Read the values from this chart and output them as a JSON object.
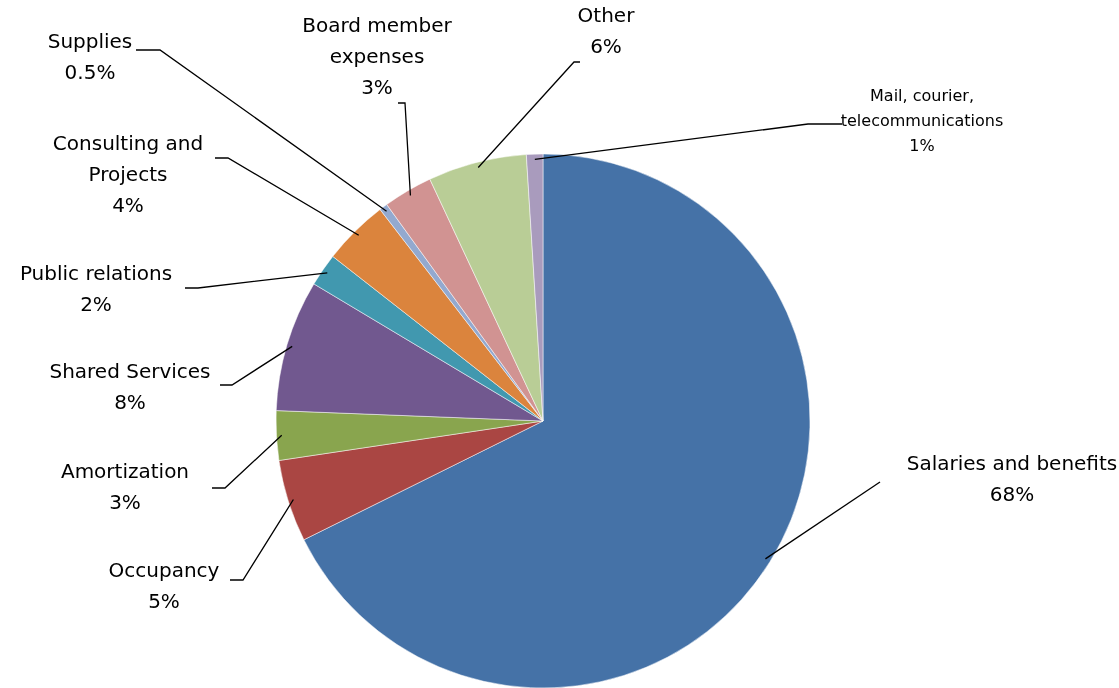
{
  "chart_data": {
    "type": "pie",
    "categories": [
      "Salaries and benefits",
      "Occupancy",
      "Amortization",
      "Shared Services",
      "Public relations",
      "Consulting and Projects",
      "Supplies",
      "Board member expenses",
      "Other",
      "Mail, courier, telecommunications"
    ],
    "values": [
      68,
      5,
      3,
      8,
      2,
      4,
      0.5,
      3,
      6,
      1
    ],
    "value_labels": [
      "68%",
      "5%",
      "3%",
      "8%",
      "2%",
      "4%",
      "0.5%",
      "3%",
      "6%",
      "1%"
    ],
    "colors": [
      "#4572a7",
      "#aa4643",
      "#89a54e",
      "#71588f",
      "#4198af",
      "#db843d",
      "#93a9cf",
      "#d19392",
      "#b9cd96",
      "#a99bbd"
    ],
    "legend": false
  }
}
